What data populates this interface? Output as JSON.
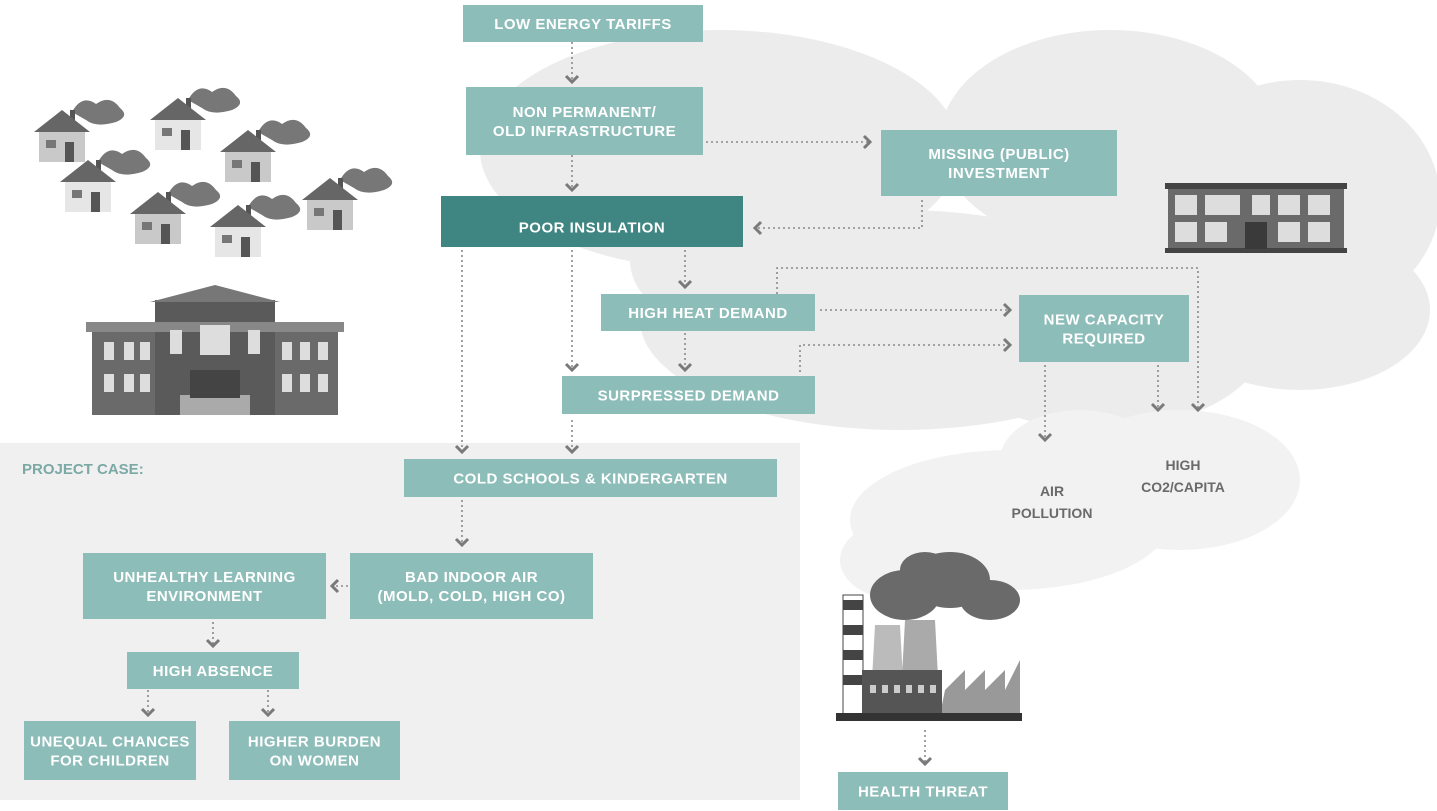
{
  "header": {
    "section_label": "PROJECT CASE:"
  },
  "nodes": [
    {
      "lines": [
        "LOW ENERGY TARIFFS"
      ]
    },
    {
      "lines": [
        "NON PERMANENT/",
        "OLD INFRASTRUCTURE"
      ]
    },
    {
      "lines": [
        "MISSING (PUBLIC)",
        "INVESTMENT"
      ]
    },
    {
      "lines": [
        "POOR INSULATION"
      ]
    },
    {
      "lines": [
        "HIGH HEAT DEMAND"
      ]
    },
    {
      "lines": [
        "NEW CAPACITY",
        "REQUIRED"
      ]
    },
    {
      "lines": [
        "SURPRESSED DEMAND"
      ]
    },
    {
      "lines": [
        "COLD SCHOOLS & KINDERGARTEN"
      ]
    },
    {
      "lines": [
        "BAD INDOOR AIR",
        "(MOLD, COLD, HIGH CO)"
      ]
    },
    {
      "lines": [
        "UNHEALTHY LEARNING",
        "ENVIRONMENT"
      ]
    },
    {
      "lines": [
        "HIGH ABSENCE"
      ]
    },
    {
      "lines": [
        "UNEQUAL CHANCES",
        "FOR CHILDREN"
      ]
    },
    {
      "lines": [
        "HIGHER BURDEN",
        "ON WOMEN"
      ]
    },
    {
      "lines": [
        "HEALTH THREAT"
      ]
    }
  ],
  "cloud_labels": [
    {
      "lines": [
        "AIR",
        "POLLUTION"
      ]
    },
    {
      "lines": [
        "HIGH",
        "CO2/CAPITA"
      ]
    }
  ]
}
